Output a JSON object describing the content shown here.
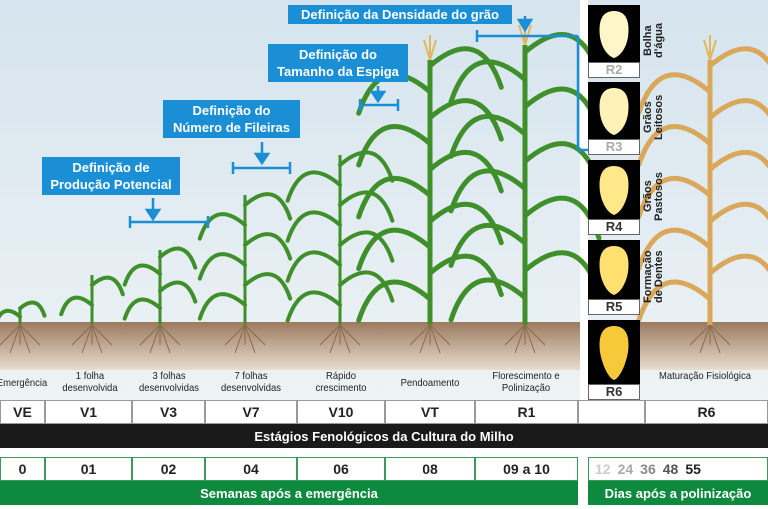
{
  "callouts": {
    "producao": "Definição de Produção Potencial",
    "fileiras": "Definição do Número de Fileiras",
    "espiga": "Definição do Tamanho da Espiga",
    "densidade": "Definição da Densidade do grão"
  },
  "stage_labels": [
    "Emergência",
    "1 folha desenvolvida",
    "3 folhas desenvolvidas",
    "7 folhas desenvolvidas",
    "Rápido crescimento",
    "Pendoamento",
    "Florescimento e Polinização",
    "Maturação Fisiológica"
  ],
  "stage_codes": [
    "VE",
    "V1",
    "V3",
    "V7",
    "V10",
    "VT",
    "R1",
    "",
    "R6"
  ],
  "stages_title": "Estágios Fenológicos da Cultura do Milho",
  "weeks": [
    "0",
    "01",
    "02",
    "04",
    "06",
    "08",
    "09 a 10"
  ],
  "weeks_title": "Semanas após a emergência",
  "days": [
    "12",
    "24",
    "36",
    "48",
    "55"
  ],
  "days_title": "Dias após a polinização",
  "kernels": [
    {
      "code": "R2",
      "desc": "Bolha d'água"
    },
    {
      "code": "R3",
      "desc": "Grãos Leitosos"
    },
    {
      "code": "R4",
      "desc": "Grãos Pastosos"
    },
    {
      "code": "R5",
      "desc": "Formação de Dentes"
    },
    {
      "code": "R6",
      "desc": ""
    }
  ],
  "colors": {
    "callout": "#1b8fd6",
    "green_bar": "#0e8a3e",
    "black_bar": "#1a1a1a",
    "plant": "#3f8f2a",
    "mature": "#d9a85a"
  }
}
